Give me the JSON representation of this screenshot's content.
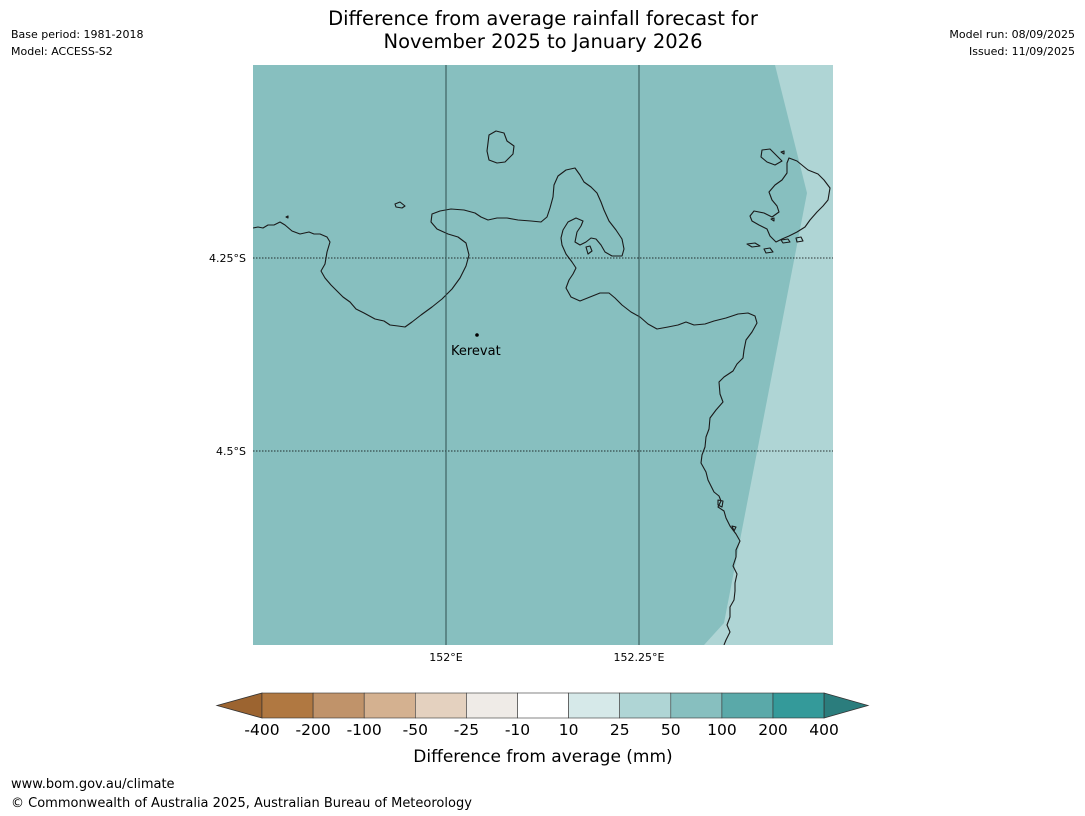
{
  "title": {
    "line1": "Difference from average rainfall forecast for",
    "line2": "November 2025 to January 2026"
  },
  "meta_left": {
    "base_period": "Base period: 1981-2018",
    "model": "Model: ACCESS-S2"
  },
  "meta_right": {
    "model_run": "Model run: 08/09/2025",
    "issued": "Issued: 11/09/2025"
  },
  "map": {
    "latitude_labels": [
      "4.25°S",
      "4.5°S"
    ],
    "longitude_labels": [
      "152°E",
      "152.25°E"
    ],
    "place": {
      "name": "Kerevat"
    },
    "fill_colors": {
      "main": "#87bfbf",
      "east": "#afd5d5",
      "land_outline": "#1a1a1a"
    }
  },
  "colorbar": {
    "title": "Difference from average (mm)",
    "tick_labels": [
      "-400",
      "-200",
      "-100",
      "-50",
      "-25",
      "-10",
      "10",
      "25",
      "50",
      "100",
      "200",
      "400"
    ],
    "colors": [
      "#9c6430",
      "#b07841",
      "#c0936a",
      "#d4b190",
      "#e4d1bf",
      "#efebe7",
      "#ffffff",
      "#d6e9e9",
      "#afd5d5",
      "#87bfbf",
      "#5aa9a9",
      "#349a9a",
      "#2b7d7d"
    ]
  },
  "footer": {
    "url": "www.bom.gov.au/climate",
    "copyright": "© Commonwealth of Australia 2025, Australian Bureau of Meteorology"
  }
}
